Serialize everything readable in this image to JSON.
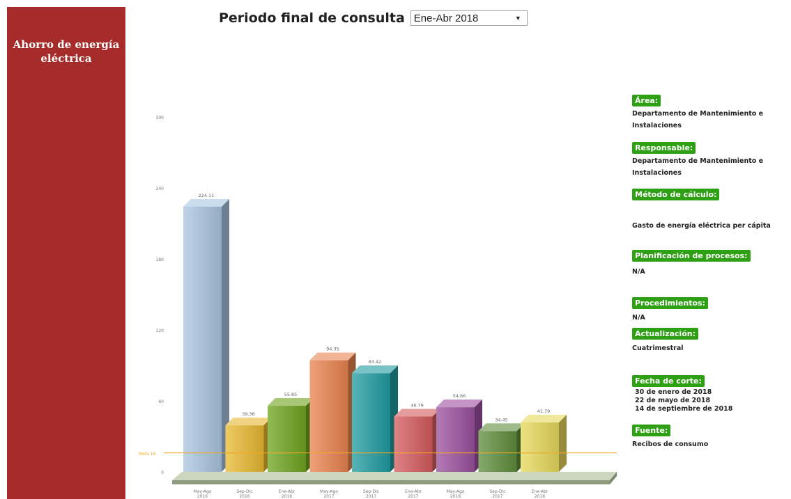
{
  "sidebar": {
    "title": "Ahorro de energía eléctrica"
  },
  "period": {
    "label": "Periodo final de consulta",
    "selected": "Ene-Abr 2018"
  },
  "info": {
    "area_label": "Área:",
    "area_value": "Departamento de Mantenimiento e Instalaciones",
    "responsable_label": "Responsable:",
    "responsable_value": "Departamento de Mantenimiento e Instalaciones",
    "metodo_label": "Método de cálculo:",
    "metodo_value": "Gasto de energía eléctrica per cápita",
    "planificacion_label": "Planificación de procesos:",
    "planificacion_value": "N/A",
    "procedimientos_label": "Procedimientos:",
    "procedimientos_value": "N/A",
    "actualizacion_label": "Actualización:",
    "actualizacion_value": "Cuatrimestral",
    "fecha_label": "Fecha de corte:",
    "fecha_values": [
      "30 de enero de 2018",
      "22 de mayo de 2018",
      "14 de septiembre de 2018"
    ],
    "fuente_label": "Fuente:",
    "fuente_value": "Recibos de consumo"
  },
  "colors": {
    "sidebar": "#a52c2a",
    "label_bg": "#2ea013",
    "meta_line": "#f5a623"
  },
  "chart_data": {
    "type": "bar",
    "title": "",
    "xlabel": "",
    "ylabel": "",
    "ylim": [
      0,
      300
    ],
    "yticks": [
      0,
      60,
      120,
      180,
      240,
      300
    ],
    "grid": false,
    "categories": [
      "May-Ago 2016",
      "Sep-Dic 2016",
      "Ene-Abr 2016",
      "May-Ago 2017",
      "Sep-Dic 2017",
      "Ene-Abr 2017",
      "May-Ago 2018",
      "Sep-Dic 2017",
      "Ene-Abr 2018"
    ],
    "values": [
      224.11,
      39.36,
      55.85,
      94.35,
      83.42,
      46.79,
      54.66,
      34.45,
      41.79
    ],
    "value_labels": [
      "224.11",
      "39.36",
      "55.85",
      "94.35",
      "83.42",
      "46.79",
      "54.66",
      "34.45",
      "41.79"
    ],
    "bar_colors": [
      "#a9c4e0",
      "#e8b830",
      "#6ea41e",
      "#e8824c",
      "#1f9ba0",
      "#d45a5c",
      "#9a4f9e",
      "#5d8c3a",
      "#e6d85a"
    ],
    "reference_line": {
      "label": "Meta 16",
      "value": 16
    }
  }
}
